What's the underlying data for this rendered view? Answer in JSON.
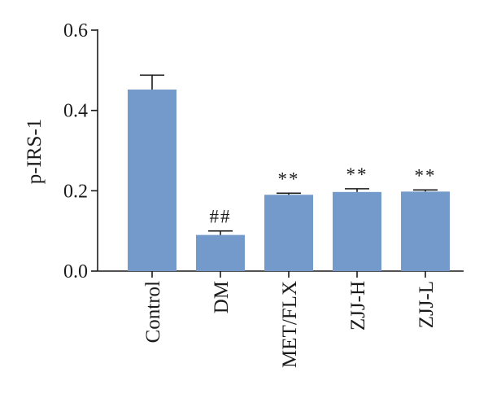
{
  "chart_data": {
    "type": "bar",
    "title": "",
    "xlabel": "",
    "ylabel": "p-IRS-1",
    "ylim": [
      0,
      0.6
    ],
    "yticks": [
      "0.0",
      "0.2",
      "0.4",
      "0.6"
    ],
    "grid": false,
    "bar_color": "#7499cb",
    "categories": [
      "Control",
      "DM",
      "MET/FLX",
      "ZJJ-H",
      "ZJJ-L"
    ],
    "values": [
      0.452,
      0.09,
      0.19,
      0.197,
      0.198
    ],
    "errors": [
      0.036,
      0.01,
      0.004,
      0.008,
      0.004
    ],
    "significance": [
      "",
      "##",
      "**",
      "**",
      "**"
    ]
  }
}
